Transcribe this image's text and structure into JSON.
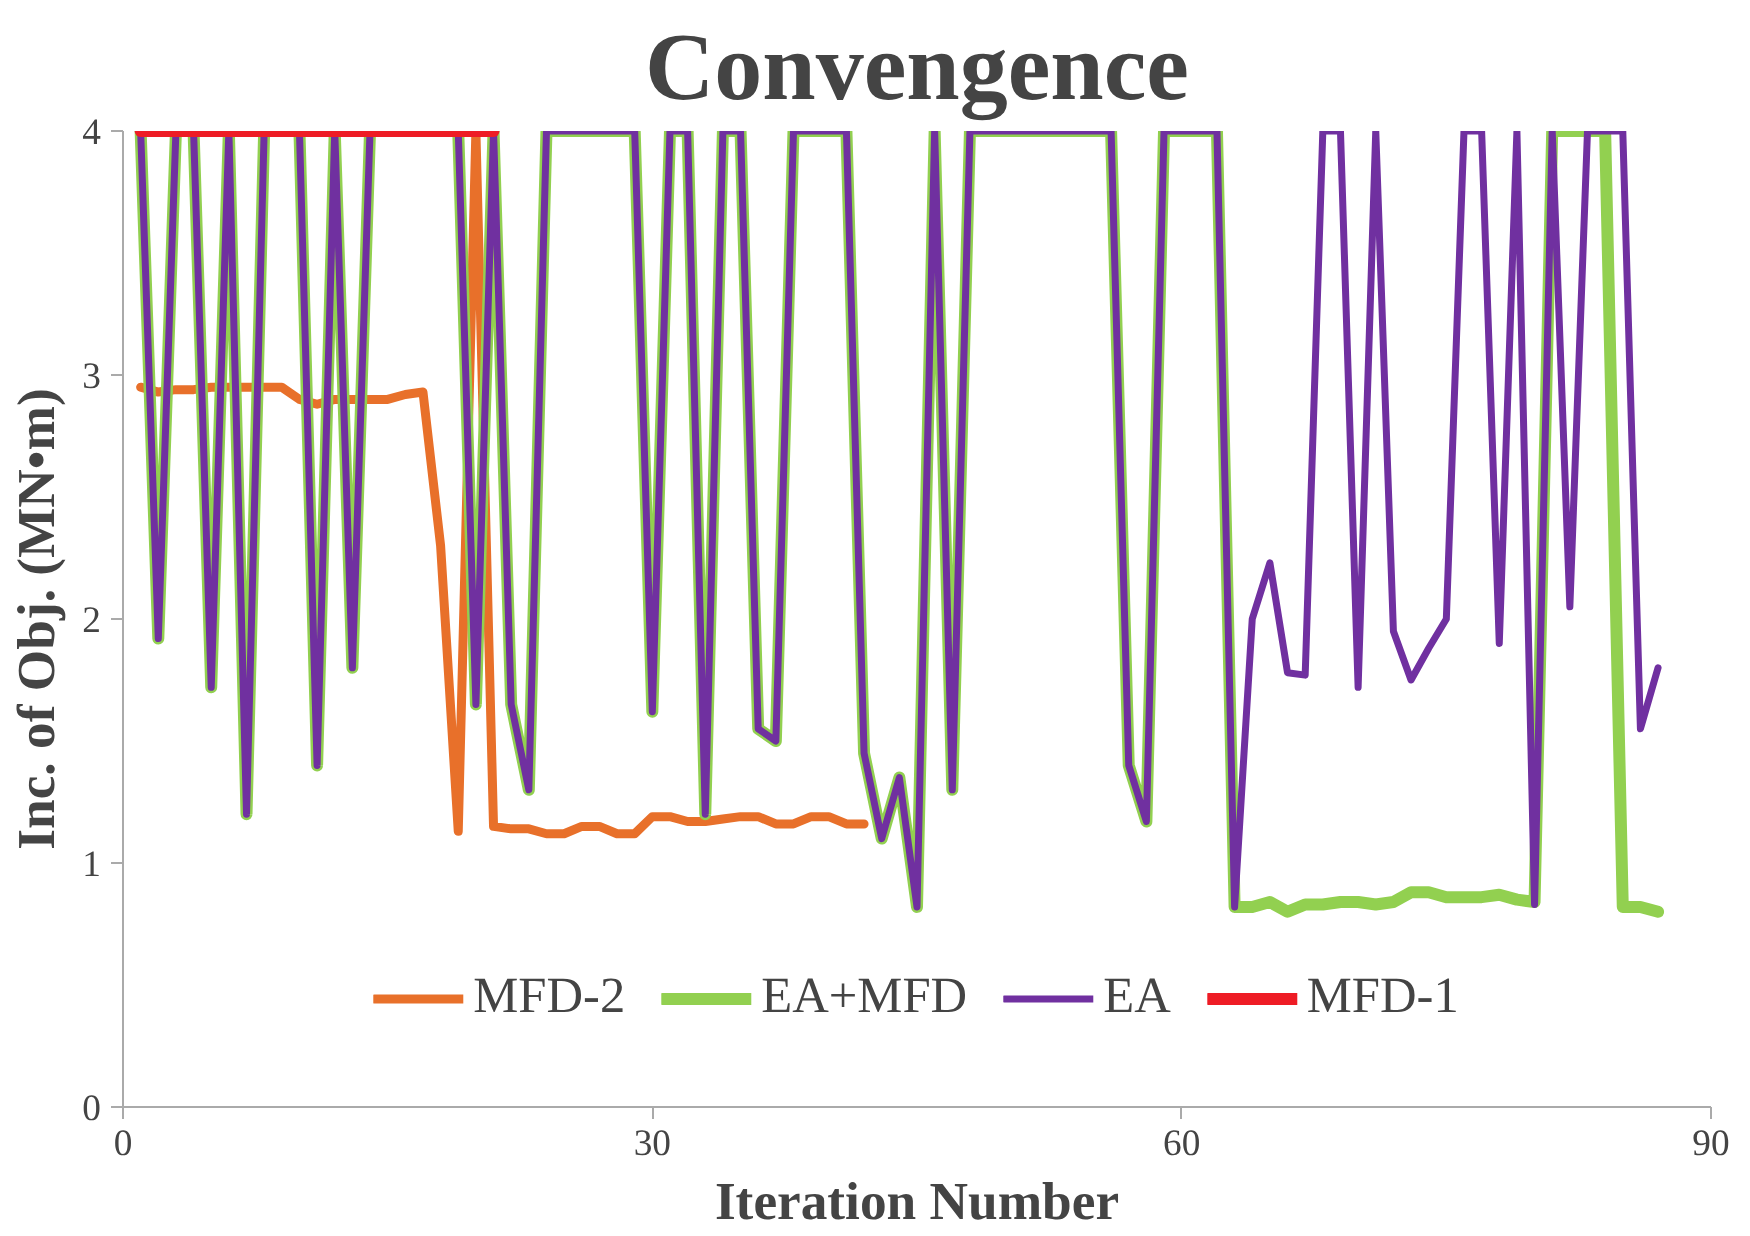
{
  "chart_data": {
    "type": "line",
    "title": "Convengence",
    "xlabel": "Iteration Number",
    "ylabel": "Inc. of Obj. (MN•m)",
    "xlim": [
      0,
      90
    ],
    "xticks": [
      0,
      30,
      60,
      90
    ],
    "ylim": [
      0,
      4
    ],
    "yticks": [
      0,
      1,
      2,
      3,
      4
    ],
    "grid": false,
    "legend": "bottom",
    "line_style": "solid",
    "marker": "none",
    "series": [
      {
        "name": "MFD-2",
        "color": "#e8702a",
        "x": [
          1,
          2,
          3,
          4,
          5,
          6,
          7,
          8,
          9,
          10,
          11,
          12,
          13,
          14,
          15,
          16,
          17,
          18,
          19,
          20,
          21,
          22,
          23,
          24,
          25,
          26,
          27,
          28,
          29,
          30,
          31,
          32,
          33,
          34,
          35,
          36,
          37,
          38,
          39,
          40,
          41,
          42
        ],
        "values": [
          2.95,
          2.93,
          2.94,
          2.94,
          2.95,
          2.95,
          2.95,
          2.95,
          2.95,
          2.9,
          2.88,
          2.9,
          2.9,
          2.9,
          2.9,
          2.92,
          2.93,
          2.3,
          1.13,
          4,
          1.15,
          1.14,
          1.14,
          1.12,
          1.12,
          1.15,
          1.15,
          1.12,
          1.12,
          1.19,
          1.19,
          1.17,
          1.17,
          1.18,
          1.19,
          1.19,
          1.16,
          1.16,
          1.19,
          1.19,
          1.16,
          1.16
        ]
      },
      {
        "name": "EA+MFD",
        "color": "#92d050",
        "x": [
          1,
          2,
          3,
          4,
          5,
          6,
          7,
          8,
          9,
          10,
          11,
          12,
          13,
          14,
          15,
          16,
          17,
          18,
          19,
          20,
          21,
          22,
          23,
          24,
          25,
          26,
          27,
          28,
          29,
          30,
          31,
          32,
          33,
          34,
          35,
          36,
          37,
          38,
          39,
          40,
          41,
          42,
          43,
          44,
          45,
          46,
          47,
          48,
          49,
          50,
          51,
          52,
          53,
          54,
          55,
          56,
          57,
          58,
          59,
          60,
          61,
          62,
          63,
          64,
          65,
          66,
          67,
          68,
          69,
          70,
          71,
          72,
          73,
          74,
          75,
          76,
          77,
          78,
          79,
          80,
          81,
          82,
          83,
          84,
          85,
          86,
          87
        ],
        "values": [
          4,
          1.92,
          4,
          4,
          1.72,
          4,
          1.2,
          4,
          null,
          4,
          1.4,
          4,
          1.8,
          4,
          null,
          null,
          null,
          null,
          4,
          1.65,
          4,
          1.65,
          1.3,
          4,
          4,
          4,
          4,
          4,
          4,
          1.62,
          4,
          4,
          1.2,
          4,
          4,
          1.55,
          1.5,
          4,
          4,
          4,
          4,
          1.45,
          1.1,
          1.35,
          0.82,
          4,
          1.3,
          4,
          4,
          4,
          4,
          4,
          4,
          4,
          4,
          4,
          1.4,
          1.17,
          4,
          4,
          4,
          4,
          0.82,
          0.82,
          0.84,
          0.8,
          0.83,
          0.83,
          0.84,
          0.84,
          0.83,
          0.84,
          0.88,
          0.88,
          0.86,
          0.86,
          0.86,
          0.87,
          0.85,
          0.84,
          4,
          4,
          4,
          4,
          0.82,
          0.82,
          0.8
        ]
      },
      {
        "name": "EA",
        "color": "#7030a0",
        "x": [
          1,
          2,
          3,
          4,
          5,
          6,
          7,
          8,
          9,
          10,
          11,
          12,
          13,
          14,
          15,
          16,
          17,
          18,
          19,
          20,
          21,
          22,
          23,
          24,
          25,
          26,
          27,
          28,
          29,
          30,
          31,
          32,
          33,
          34,
          35,
          36,
          37,
          38,
          39,
          40,
          41,
          42,
          43,
          44,
          45,
          46,
          47,
          48,
          49,
          50,
          51,
          52,
          53,
          54,
          55,
          56,
          57,
          58,
          59,
          60,
          61,
          62,
          63,
          64,
          65,
          66,
          67,
          68,
          69,
          70,
          71,
          72,
          73,
          74,
          75,
          76,
          77,
          78,
          79,
          80,
          81,
          82,
          83,
          84,
          85,
          86,
          87
        ],
        "values": [
          4,
          1.92,
          4,
          4,
          1.72,
          4,
          1.2,
          4,
          null,
          4,
          1.4,
          4,
          1.8,
          4,
          null,
          null,
          null,
          null,
          4,
          1.65,
          4,
          1.65,
          1.3,
          4,
          4,
          4,
          4,
          4,
          4,
          1.62,
          4,
          4,
          1.2,
          4,
          4,
          1.55,
          1.5,
          4,
          4,
          4,
          4,
          1.45,
          1.1,
          1.35,
          0.82,
          4,
          1.3,
          4,
          4,
          4,
          4,
          4,
          4,
          4,
          4,
          4,
          1.4,
          1.17,
          4,
          4,
          4,
          4,
          0.82,
          2.0,
          2.23,
          1.78,
          1.77,
          4,
          4,
          1.72,
          4,
          1.95,
          1.75,
          1.88,
          2.0,
          4,
          4,
          1.9,
          4,
          0.83,
          4,
          2.05,
          4,
          4,
          4,
          1.55,
          1.8
        ]
      },
      {
        "name": "MFD-1",
        "color": "#ee1c25",
        "x": [
          1,
          2,
          3,
          4,
          5,
          6,
          7,
          8,
          9,
          10,
          11,
          12,
          13,
          14,
          15,
          16,
          17,
          18,
          19,
          20,
          21
        ],
        "values": [
          4,
          4,
          4,
          4,
          4,
          4,
          4,
          4,
          4,
          4,
          4,
          4,
          4,
          4,
          4,
          4,
          4,
          4,
          4,
          4,
          4
        ]
      }
    ]
  }
}
